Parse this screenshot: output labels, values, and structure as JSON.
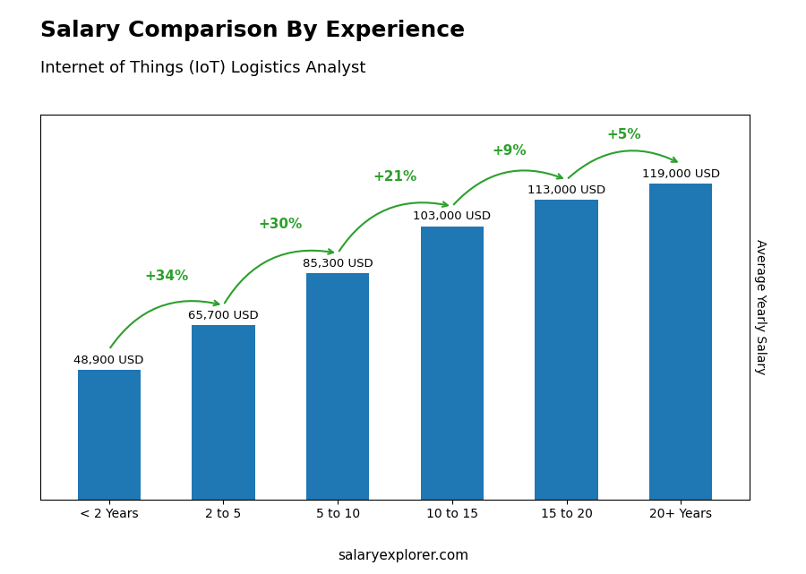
{
  "chart_data": {
    "type": "bar",
    "title": "Salary Comparison By Experience",
    "subtitle": "Internet of Things (IoT) Logistics Analyst",
    "y_label": "Average Yearly Salary",
    "source": "salaryexplorer.com",
    "categories": [
      "< 2 Years",
      "2 to 5",
      "5 to 10",
      "10 to 15",
      "15 to 20",
      "20+ Years"
    ],
    "values": [
      48900,
      65700,
      85300,
      103000,
      113000,
      119000
    ],
    "value_labels": [
      "48,900 USD",
      "65,700 USD",
      "85,300 USD",
      "103,000 USD",
      "113,000 USD",
      "119,000 USD"
    ],
    "data_labels": true,
    "annotations": [
      "+34%",
      "+30%",
      "+21%",
      "+9%",
      "+5%"
    ],
    "ylim": [
      0,
      145000
    ],
    "tick_labels": "x",
    "grid": false
  }
}
